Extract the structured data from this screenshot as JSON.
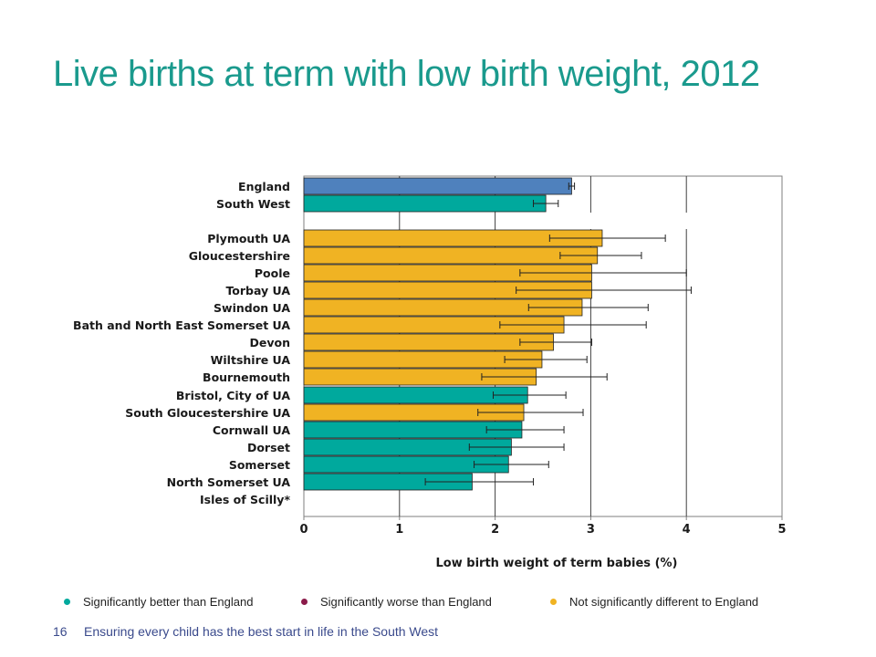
{
  "title": "Live births at term with low birth weight, 2012",
  "legend": [
    {
      "label": "Significantly better than England",
      "color": "#00a99d"
    },
    {
      "label": "Significantly worse than England",
      "color": "#8b1b4a"
    },
    {
      "label": "Not significantly different to England",
      "color": "#f0b323"
    }
  ],
  "footer": {
    "page_number": "16",
    "text": "Ensuring every child has the best start in life in the South West"
  },
  "chart_data": {
    "type": "bar",
    "orientation": "horizontal",
    "xlabel": "Low birth weight of term babies (%)",
    "xlim": [
      0,
      5
    ],
    "xticks": [
      "0",
      "1",
      "2",
      "3",
      "4",
      "5"
    ],
    "grid": "vertical",
    "colors": {
      "england": "#4f81bd",
      "better": "#00a99d",
      "not_significant": "#f0b323"
    },
    "bars": [
      {
        "label": "England",
        "value": 2.8,
        "ci": [
          2.77,
          2.83
        ],
        "group": "england"
      },
      {
        "label": "South West",
        "value": 2.53,
        "ci": [
          2.4,
          2.66
        ],
        "group": "better"
      },
      {
        "label": "Plymouth UA",
        "value": 3.12,
        "ci": [
          2.57,
          3.78
        ],
        "group": "not_significant"
      },
      {
        "label": "Gloucestershire",
        "value": 3.07,
        "ci": [
          2.68,
          3.53
        ],
        "group": "not_significant"
      },
      {
        "label": "Poole",
        "value": 3.01,
        "ci": [
          2.26,
          4.0
        ],
        "group": "not_significant"
      },
      {
        "label": "Torbay UA",
        "value": 3.01,
        "ci": [
          2.22,
          4.05
        ],
        "group": "not_significant"
      },
      {
        "label": "Swindon UA",
        "value": 2.91,
        "ci": [
          2.35,
          3.6
        ],
        "group": "not_significant"
      },
      {
        "label": "Bath and North East Somerset UA",
        "value": 2.72,
        "ci": [
          2.05,
          3.58
        ],
        "group": "not_significant"
      },
      {
        "label": "Devon",
        "value": 2.61,
        "ci": [
          2.26,
          3.01
        ],
        "group": "not_significant"
      },
      {
        "label": "Wiltshire UA",
        "value": 2.49,
        "ci": [
          2.1,
          2.96
        ],
        "group": "not_significant"
      },
      {
        "label": "Bournemouth",
        "value": 2.43,
        "ci": [
          1.86,
          3.17
        ],
        "group": "not_significant"
      },
      {
        "label": "Bristol, City of UA",
        "value": 2.34,
        "ci": [
          1.98,
          2.74
        ],
        "group": "better"
      },
      {
        "label": "South Gloucestershire UA",
        "value": 2.3,
        "ci": [
          1.82,
          2.92
        ],
        "group": "not_significant"
      },
      {
        "label": "Cornwall UA",
        "value": 2.28,
        "ci": [
          1.91,
          2.72
        ],
        "group": "better"
      },
      {
        "label": "Dorset",
        "value": 2.17,
        "ci": [
          1.73,
          2.72
        ],
        "group": "better"
      },
      {
        "label": "Somerset",
        "value": 2.14,
        "ci": [
          1.78,
          2.56
        ],
        "group": "better"
      },
      {
        "label": "North Somerset UA",
        "value": 1.76,
        "ci": [
          1.27,
          2.4
        ],
        "group": "better"
      },
      {
        "label": "Isles of Scilly*",
        "value": null,
        "ci": null,
        "group": "none"
      }
    ]
  }
}
